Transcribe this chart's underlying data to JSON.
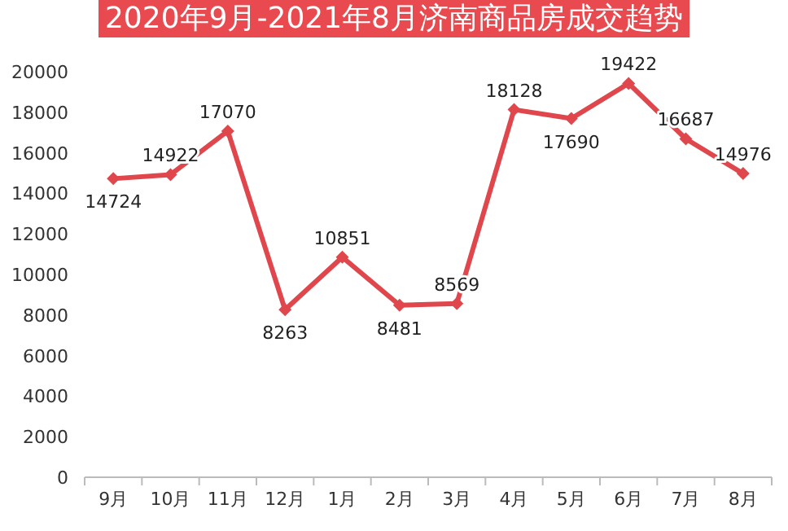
{
  "chart_data": {
    "type": "line",
    "title": "2020年9月-2021年8月济南商品房成交趋势",
    "categories": [
      "9月",
      "10月",
      "11月",
      "12月",
      "1月",
      "2月",
      "3月",
      "4月",
      "5月",
      "6月",
      "7月",
      "8月"
    ],
    "series": [
      {
        "color": "#e0474c",
        "values": [
          14724,
          14922,
          17070,
          8263,
          10851,
          8481,
          8569,
          18128,
          17690,
          19422,
          16687,
          14976
        ]
      }
    ],
    "ylim": [
      0,
      20000
    ],
    "yticks": [
      0,
      2000,
      4000,
      6000,
      8000,
      10000,
      12000,
      14000,
      16000,
      18000,
      20000
    ],
    "data_labels": true,
    "marker": "diamond",
    "line_style": "solid"
  }
}
